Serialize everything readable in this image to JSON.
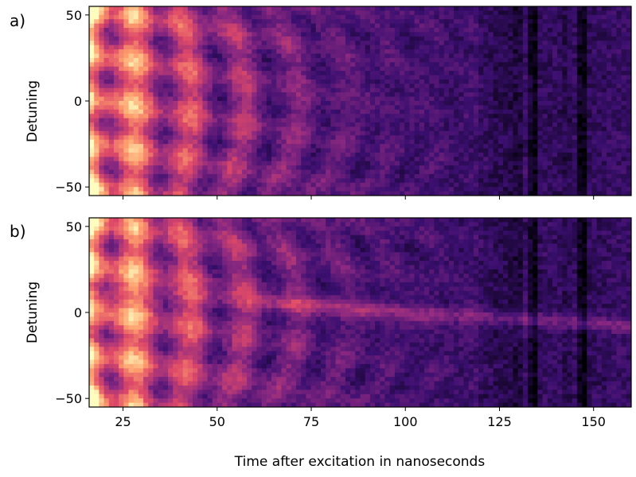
{
  "figure": {
    "xlabel": "Time after excitation in nanoseconds",
    "colormap": "inferno"
  },
  "chart_data": [
    {
      "type": "heatmap",
      "panel_label": "a)",
      "title": "",
      "xlabel": "",
      "ylabel": "Detuning",
      "xlim": [
        16,
        160
      ],
      "ylim": [
        -55,
        55
      ],
      "xticks": [
        25,
        50,
        75,
        100,
        125,
        150
      ],
      "yticks": [
        -50,
        0,
        50
      ],
      "ytick_labels": [
        "−50",
        "0",
        "50"
      ],
      "show_xtick_labels": false,
      "grid": false,
      "dark_bands_x": [
        134,
        147
      ],
      "center_line": false,
      "colors": [
        "#000004",
        "#3b0f70",
        "#8c2981",
        "#de4968",
        "#fe9f6d",
        "#fcfdbf"
      ]
    },
    {
      "type": "heatmap",
      "panel_label": "b)",
      "title": "",
      "xlabel": "Time after excitation in nanoseconds",
      "ylabel": "Detuning",
      "xlim": [
        16,
        160
      ],
      "ylim": [
        -55,
        55
      ],
      "xticks": [
        25,
        50,
        75,
        100,
        125,
        150
      ],
      "yticks": [
        -50,
        0,
        50
      ],
      "ytick_labels": [
        "−50",
        "0",
        "50"
      ],
      "show_xtick_labels": true,
      "grid": false,
      "dark_bands_x": [
        134,
        147
      ],
      "center_line": true,
      "colors": [
        "#000004",
        "#3b0f70",
        "#8c2981",
        "#de4968",
        "#fe9f6d",
        "#fcfdbf"
      ]
    }
  ]
}
